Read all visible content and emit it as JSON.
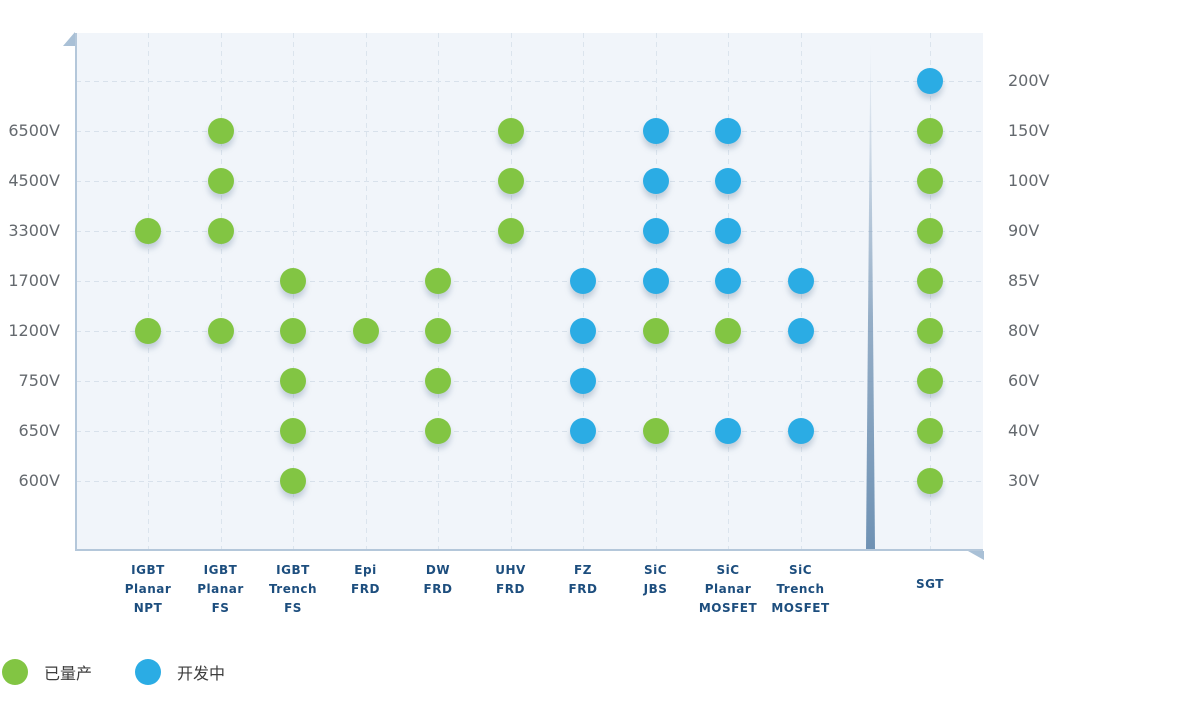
{
  "chart_data": {
    "type": "scatter",
    "title": "",
    "grid": true,
    "legend_position": "bottom-left",
    "series_colors": {
      "production": "#82c543",
      "development": "#2bace4"
    },
    "legend": [
      {
        "status": "production",
        "label": "已量产"
      },
      {
        "status": "development",
        "label": "开发中"
      }
    ],
    "left_axis_ticks": [
      "6500V",
      "4500V",
      "3300V",
      "1700V",
      "1200V",
      "750V",
      "650V",
      "600V"
    ],
    "right_axis_ticks": [
      "200V",
      "150V",
      "100V",
      "90V",
      "85V",
      "80V",
      "60V",
      "40V",
      "30V"
    ],
    "columns": [
      {
        "axis": "left",
        "label_lines": [
          "IGBT",
          "Planar",
          "NPT"
        ],
        "points": [
          {
            "v": "3300V",
            "s": "production"
          },
          {
            "v": "1200V",
            "s": "production"
          }
        ]
      },
      {
        "axis": "left",
        "label_lines": [
          "IGBT",
          "Planar",
          "FS"
        ],
        "points": [
          {
            "v": "6500V",
            "s": "production"
          },
          {
            "v": "4500V",
            "s": "production"
          },
          {
            "v": "3300V",
            "s": "production"
          },
          {
            "v": "1200V",
            "s": "production"
          }
        ]
      },
      {
        "axis": "left",
        "label_lines": [
          "IGBT",
          "Trench",
          "FS"
        ],
        "points": [
          {
            "v": "1700V",
            "s": "production"
          },
          {
            "v": "1200V",
            "s": "production"
          },
          {
            "v": "750V",
            "s": "production"
          },
          {
            "v": "650V",
            "s": "production"
          },
          {
            "v": "600V",
            "s": "production"
          }
        ]
      },
      {
        "axis": "left",
        "label_lines": [
          "Epi",
          "FRD"
        ],
        "points": [
          {
            "v": "1200V",
            "s": "production"
          }
        ]
      },
      {
        "axis": "left",
        "label_lines": [
          "DW",
          "FRD"
        ],
        "points": [
          {
            "v": "1700V",
            "s": "production"
          },
          {
            "v": "1200V",
            "s": "production"
          },
          {
            "v": "750V",
            "s": "production"
          },
          {
            "v": "650V",
            "s": "production"
          }
        ]
      },
      {
        "axis": "left",
        "label_lines": [
          "UHV",
          "FRD"
        ],
        "points": [
          {
            "v": "6500V",
            "s": "production"
          },
          {
            "v": "4500V",
            "s": "production"
          },
          {
            "v": "3300V",
            "s": "production"
          }
        ]
      },
      {
        "axis": "left",
        "label_lines": [
          "FZ",
          "FRD"
        ],
        "points": [
          {
            "v": "1700V",
            "s": "development"
          },
          {
            "v": "1200V",
            "s": "development"
          },
          {
            "v": "750V",
            "s": "development"
          },
          {
            "v": "650V",
            "s": "development"
          }
        ]
      },
      {
        "axis": "left",
        "label_lines": [
          "SiC",
          "JBS"
        ],
        "points": [
          {
            "v": "6500V",
            "s": "development"
          },
          {
            "v": "4500V",
            "s": "development"
          },
          {
            "v": "3300V",
            "s": "development"
          },
          {
            "v": "1700V",
            "s": "development"
          },
          {
            "v": "1200V",
            "s": "production"
          },
          {
            "v": "650V",
            "s": "production"
          }
        ]
      },
      {
        "axis": "left",
        "label_lines": [
          "SiC",
          "Planar",
          "MOSFET"
        ],
        "points": [
          {
            "v": "6500V",
            "s": "development"
          },
          {
            "v": "4500V",
            "s": "development"
          },
          {
            "v": "3300V",
            "s": "development"
          },
          {
            "v": "1700V",
            "s": "development"
          },
          {
            "v": "1200V",
            "s": "production"
          },
          {
            "v": "650V",
            "s": "development"
          }
        ]
      },
      {
        "axis": "left",
        "label_lines": [
          "SiC",
          "Trench",
          "MOSFET"
        ],
        "points": [
          {
            "v": "1700V",
            "s": "development"
          },
          {
            "v": "1200V",
            "s": "development"
          },
          {
            "v": "650V",
            "s": "development"
          }
        ]
      },
      {
        "axis": "right",
        "label_lines": [
          "SGT"
        ],
        "points": [
          {
            "v": "200V",
            "s": "development"
          },
          {
            "v": "150V",
            "s": "production"
          },
          {
            "v": "100V",
            "s": "production"
          },
          {
            "v": "90V",
            "s": "production"
          },
          {
            "v": "85V",
            "s": "production"
          },
          {
            "v": "80V",
            "s": "production"
          },
          {
            "v": "60V",
            "s": "production"
          },
          {
            "v": "40V",
            "s": "production"
          },
          {
            "v": "30V",
            "s": "production"
          }
        ]
      }
    ]
  }
}
